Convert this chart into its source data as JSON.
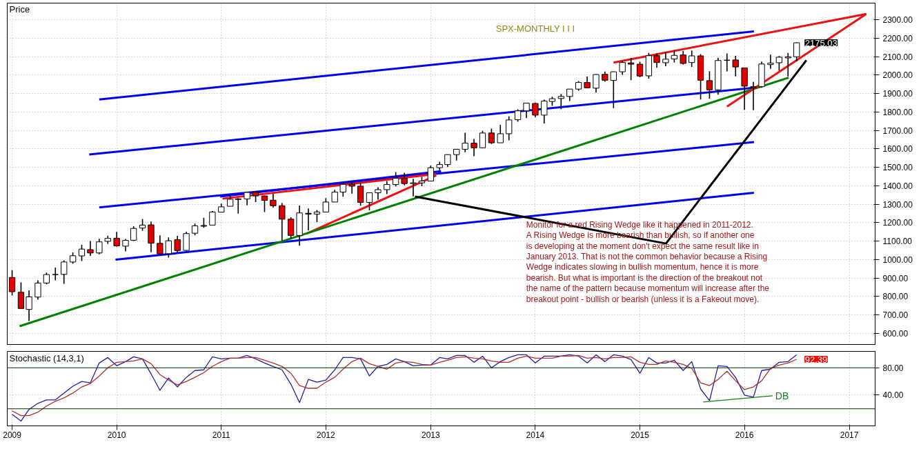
{
  "chart_data": [
    {
      "type": "candlestick",
      "title": "SPX-MONTHLY  I I I",
      "ylabel": "Price",
      "xlim": [
        "2008-12-15",
        "2017-04-01"
      ],
      "ylim": [
        540,
        2390
      ],
      "xticks": [
        "2009",
        "2010",
        "2011",
        "2012",
        "2013",
        "2014",
        "2015",
        "2016",
        "2017"
      ],
      "yticks": [
        {
          "value": 600,
          "label": "600.00"
        },
        {
          "value": 700,
          "label": "700.00"
        },
        {
          "value": 800,
          "label": "800.00"
        },
        {
          "value": 900,
          "label": "900.00"
        },
        {
          "value": 1000,
          "label": "1000.00"
        },
        {
          "value": 1100,
          "label": "1100.00"
        },
        {
          "value": 1200,
          "label": "1200.00"
        },
        {
          "value": 1300,
          "label": "1300.00"
        },
        {
          "value": 1400,
          "label": "1400.00"
        },
        {
          "value": 1500,
          "label": "1500.00"
        },
        {
          "value": 1600,
          "label": "1600.00"
        },
        {
          "value": 1700,
          "label": "1700.00"
        },
        {
          "value": 1800,
          "label": "1800.00"
        },
        {
          "value": 1900,
          "label": "1900.00"
        },
        {
          "value": 2000,
          "label": "2000.00"
        },
        {
          "value": 2100,
          "label": "2100.00"
        },
        {
          "value": 2200,
          "label": "2200.00"
        },
        {
          "value": 2300,
          "label": "2300.00"
        }
      ],
      "tick_labels": "y",
      "grid": true,
      "x": [
        "2009-01",
        "2009-02",
        "2009-03",
        "2009-04",
        "2009-05",
        "2009-06",
        "2009-07",
        "2009-08",
        "2009-09",
        "2009-10",
        "2009-11",
        "2009-12",
        "2010-01",
        "2010-02",
        "2010-03",
        "2010-04",
        "2010-05",
        "2010-06",
        "2010-07",
        "2010-08",
        "2010-09",
        "2010-10",
        "2010-11",
        "2010-12",
        "2011-01",
        "2011-02",
        "2011-03",
        "2011-04",
        "2011-05",
        "2011-06",
        "2011-07",
        "2011-08",
        "2011-09",
        "2011-10",
        "2011-11",
        "2011-12",
        "2012-01",
        "2012-02",
        "2012-03",
        "2012-04",
        "2012-05",
        "2012-06",
        "2012-07",
        "2012-08",
        "2012-09",
        "2012-10",
        "2012-11",
        "2012-12",
        "2013-01",
        "2013-02",
        "2013-03",
        "2013-04",
        "2013-05",
        "2013-06",
        "2013-07",
        "2013-08",
        "2013-09",
        "2013-10",
        "2013-11",
        "2013-12",
        "2014-01",
        "2014-02",
        "2014-03",
        "2014-04",
        "2014-05",
        "2014-06",
        "2014-07",
        "2014-08",
        "2014-09",
        "2014-10",
        "2014-11",
        "2014-12",
        "2015-01",
        "2015-02",
        "2015-03",
        "2015-04",
        "2015-05",
        "2015-06",
        "2015-07",
        "2015-08",
        "2015-09",
        "2015-10",
        "2015-11",
        "2015-12",
        "2016-01",
        "2016-02",
        "2016-03",
        "2016-04",
        "2016-05",
        "2016-06",
        "2016-07"
      ],
      "ohlc": [
        [
          903,
          943,
          805,
          826
        ],
        [
          823,
          876,
          735,
          735
        ],
        [
          730,
          833,
          667,
          798
        ],
        [
          797,
          888,
          783,
          873
        ],
        [
          873,
          930,
          866,
          919
        ],
        [
          919,
          957,
          888,
          919
        ],
        [
          920,
          996,
          869,
          987
        ],
        [
          987,
          1039,
          978,
          1021
        ],
        [
          1020,
          1080,
          992,
          1057
        ],
        [
          1054,
          1101,
          1020,
          1036
        ],
        [
          1036,
          1113,
          1029,
          1096
        ],
        [
          1099,
          1130,
          1085,
          1115
        ],
        [
          1116,
          1150,
          1071,
          1074
        ],
        [
          1073,
          1112,
          1045,
          1104
        ],
        [
          1105,
          1181,
          1101,
          1169
        ],
        [
          1171,
          1220,
          1157,
          1187
        ],
        [
          1188,
          1206,
          1040,
          1089
        ],
        [
          1088,
          1131,
          1028,
          1031
        ],
        [
          1032,
          1120,
          1011,
          1102
        ],
        [
          1108,
          1129,
          1040,
          1049
        ],
        [
          1050,
          1151,
          1047,
          1141
        ],
        [
          1143,
          1196,
          1131,
          1183
        ],
        [
          1185,
          1227,
          1173,
          1181
        ],
        [
          1187,
          1263,
          1187,
          1258
        ],
        [
          1257,
          1303,
          1257,
          1286
        ],
        [
          1289,
          1345,
          1289,
          1327
        ],
        [
          1329,
          1333,
          1249,
          1326
        ],
        [
          1329,
          1364,
          1294,
          1364
        ],
        [
          1365,
          1371,
          1312,
          1345
        ],
        [
          1345,
          1346,
          1258,
          1321
        ],
        [
          1322,
          1357,
          1282,
          1292
        ],
        [
          1292,
          1307,
          1102,
          1219
        ],
        [
          1219,
          1230,
          1114,
          1131
        ],
        [
          1131,
          1293,
          1075,
          1253
        ],
        [
          1251,
          1277,
          1158,
          1247
        ],
        [
          1247,
          1269,
          1203,
          1258
        ],
        [
          1258,
          1333,
          1258,
          1312
        ],
        [
          1312,
          1378,
          1312,
          1366
        ],
        [
          1366,
          1420,
          1341,
          1408
        ],
        [
          1409,
          1422,
          1358,
          1398
        ],
        [
          1398,
          1415,
          1292,
          1310
        ],
        [
          1310,
          1363,
          1267,
          1362
        ],
        [
          1362,
          1392,
          1325,
          1379
        ],
        [
          1379,
          1426,
          1355,
          1407
        ],
        [
          1407,
          1474,
          1397,
          1441
        ],
        [
          1441,
          1471,
          1403,
          1412
        ],
        [
          1412,
          1438,
          1343,
          1416
        ],
        [
          1416,
          1448,
          1398,
          1426
        ],
        [
          1426,
          1510,
          1426,
          1498
        ],
        [
          1498,
          1530,
          1485,
          1515
        ],
        [
          1515,
          1570,
          1501,
          1569
        ],
        [
          1569,
          1598,
          1537,
          1598
        ],
        [
          1598,
          1687,
          1582,
          1631
        ],
        [
          1631,
          1654,
          1560,
          1606
        ],
        [
          1606,
          1698,
          1605,
          1686
        ],
        [
          1686,
          1710,
          1627,
          1633
        ],
        [
          1633,
          1730,
          1633,
          1682
        ],
        [
          1682,
          1776,
          1646,
          1757
        ],
        [
          1758,
          1814,
          1747,
          1806
        ],
        [
          1806,
          1849,
          1767,
          1848
        ],
        [
          1846,
          1851,
          1771,
          1783
        ],
        [
          1783,
          1867,
          1738,
          1859
        ],
        [
          1857,
          1883,
          1834,
          1872
        ],
        [
          1873,
          1898,
          1815,
          1884
        ],
        [
          1884,
          1924,
          1859,
          1924
        ],
        [
          1924,
          1968,
          1915,
          1960
        ],
        [
          1960,
          1992,
          1930,
          1931
        ],
        [
          1929,
          2005,
          1905,
          2003
        ],
        [
          2004,
          2019,
          1964,
          1972
        ],
        [
          1971,
          2019,
          1821,
          2018
        ],
        [
          2018,
          2076,
          2001,
          2068
        ],
        [
          2066,
          2093,
          1972,
          2059
        ],
        [
          2059,
          2072,
          1988,
          1995
        ],
        [
          1996,
          2120,
          1981,
          2105
        ],
        [
          2105,
          2117,
          2040,
          2068
        ],
        [
          2067,
          2126,
          2048,
          2086
        ],
        [
          2087,
          2135,
          2068,
          2107
        ],
        [
          2109,
          2130,
          2057,
          2063
        ],
        [
          2068,
          2133,
          2044,
          2104
        ],
        [
          2104,
          2113,
          1868,
          1972
        ],
        [
          1970,
          2021,
          1872,
          1920
        ],
        [
          1920,
          2094,
          1894,
          2079
        ],
        [
          2081,
          2117,
          2020,
          2080
        ],
        [
          2082,
          2104,
          1993,
          2044
        ],
        [
          2039,
          2039,
          1812,
          1940
        ],
        [
          1937,
          1963,
          1810,
          1932
        ],
        [
          1937,
          2073,
          1931,
          2060
        ],
        [
          2057,
          2111,
          2034,
          2065
        ],
        [
          2067,
          2103,
          2025,
          2097
        ],
        [
          2093,
          2120,
          1992,
          2099
        ],
        [
          2099,
          2177,
          2074,
          2175.03
        ]
      ],
      "colors": [
        "#e00000",
        "#e00000",
        "#ffffff",
        "#ffffff",
        "#ffffff",
        "#000000",
        "#ffffff",
        "#ffffff",
        "#ffffff",
        "#e00000",
        "#ffffff",
        "#ffffff",
        "#e00000",
        "#ffffff",
        "#ffffff",
        "#ffffff",
        "#e00000",
        "#e00000",
        "#ffffff",
        "#e00000",
        "#ffffff",
        "#ffffff",
        "#e00000",
        "#ffffff",
        "#ffffff",
        "#ffffff",
        "#e00000",
        "#ffffff",
        "#e00000",
        "#e00000",
        "#e00000",
        "#e00000",
        "#e00000",
        "#ffffff",
        "#e00000",
        "#ffffff",
        "#ffffff",
        "#ffffff",
        "#ffffff",
        "#e00000",
        "#e00000",
        "#ffffff",
        "#ffffff",
        "#ffffff",
        "#ffffff",
        "#e00000",
        "#ffffff",
        "#ffffff",
        "#ffffff",
        "#ffffff",
        "#ffffff",
        "#ffffff",
        "#ffffff",
        "#e00000",
        "#ffffff",
        "#e00000",
        "#ffffff",
        "#ffffff",
        "#ffffff",
        "#ffffff",
        "#e00000",
        "#ffffff",
        "#ffffff",
        "#ffffff",
        "#ffffff",
        "#ffffff",
        "#e00000",
        "#ffffff",
        "#e00000",
        "#ffffff",
        "#ffffff",
        "#e00000",
        "#e00000",
        "#ffffff",
        "#e00000",
        "#ffffff",
        "#ffffff",
        "#e00000",
        "#ffffff",
        "#e00000",
        "#e00000",
        "#ffffff",
        "#e00000",
        "#e00000",
        "#e00000",
        "#e00000",
        "#ffffff",
        "#ffffff",
        "#ffffff",
        "#ffffff",
        "#ffffff"
      ],
      "series": [
        {
          "type": "line",
          "color": "#0000ee",
          "x": [
            "2009-11-01",
            "2016-02-03"
          ],
          "values": [
            1868,
            2237
          ]
        },
        {
          "type": "line",
          "color": "#0000ee",
          "x": [
            "2009-09-27",
            "2016-02-03"
          ],
          "values": [
            1570,
            1931
          ]
        },
        {
          "type": "line",
          "color": "#0000ee",
          "x": [
            "2009-11-01",
            "2016-02-03"
          ],
          "values": [
            1283,
            1637
          ]
        },
        {
          "type": "line",
          "color": "#0000ee",
          "x": [
            "2009-12-28",
            "2016-02-03"
          ],
          "values": [
            1000,
            1362
          ]
        },
        {
          "type": "line",
          "color": "#0000ee",
          "x": [
            "2010-12-28",
            "2013-02-06"
          ],
          "values": [
            1342,
            1479
          ]
        },
        {
          "type": "line",
          "color": "#ee1111",
          "x": [
            "2011-01-05",
            "2013-01-20"
          ],
          "values": [
            1330,
            1464
          ]
        },
        {
          "type": "line",
          "color": "#ee1111",
          "x": [
            "2011-10-25",
            "2013-01-20"
          ],
          "values": [
            1140,
            1456
          ]
        },
        {
          "type": "line",
          "color": "#008000",
          "x": [
            "2009-01-27",
            "2016-06-03"
          ],
          "values": [
            639,
            1986
          ]
        },
        {
          "type": "line",
          "color": "#ee1111",
          "x": [
            "2014-10-01",
            "2017-03-01"
          ],
          "values": [
            2068,
            2331
          ]
        },
        {
          "type": "line",
          "color": "#ee1111",
          "x": [
            "2015-11-01",
            "2017-03-01"
          ],
          "values": [
            1829,
            2331
          ]
        },
        {
          "type": "line",
          "color": "#000000",
          "x": [
            "2012-11-07",
            "2015-04-02",
            "2016-08-04"
          ],
          "values": [
            1342,
            1087,
            2080
          ]
        }
      ],
      "annotations": [
        {
          "text": "2175.03",
          "x": "2016-07",
          "y": 2175.03
        },
        "Monitor for a red Rising Wedge like it happened in 2011-2012.\nA Rising Wedge is more bearish than bullish, so if another one\nis developing at the moment don't expect the same result like in\nJanuary 2013. That is not the common behavior because a Rising\nWedge indicates slowing in bullish momentum, hence it is more\nbearish. But what is important is the direction of the breakout not\nthe name of the pattern because momentum will increase after the\nbreakout point - bullish or bearish (unless it is a Fakeout move)."
      ]
    },
    {
      "type": "line",
      "title": "Stochastic (14,3,1)",
      "xlim": [
        "2008-12-15",
        "2017-04-01"
      ],
      "ylim": [
        -5,
        104
      ],
      "xticks": [
        "2009",
        "2010",
        "2011",
        "2012",
        "2013",
        "2014",
        "2015",
        "2016",
        "2017"
      ],
      "yticks": [
        {
          "value": 40,
          "label": "40.00"
        },
        {
          "value": 80,
          "label": "80.00"
        }
      ],
      "grid": true,
      "ref_lines": [
        {
          "axis": "y",
          "value": 80,
          "color": "#003000"
        },
        {
          "axis": "y",
          "value": 20,
          "color": "#003000"
        }
      ],
      "series": [
        {
          "color": "#1f1fa0",
          "x": [
            "2009-01",
            "2009-02",
            "2009-03",
            "2009-04",
            "2009-05",
            "2009-06",
            "2009-07",
            "2009-08",
            "2009-09",
            "2009-10",
            "2009-11",
            "2009-12",
            "2010-01",
            "2010-02",
            "2010-03",
            "2010-04",
            "2010-05",
            "2010-06",
            "2010-07",
            "2010-08",
            "2010-09",
            "2010-10",
            "2010-11",
            "2010-12",
            "2011-01",
            "2011-02",
            "2011-03",
            "2011-04",
            "2011-05",
            "2011-06",
            "2011-07",
            "2011-08",
            "2011-09",
            "2011-10",
            "2011-11",
            "2011-12",
            "2012-01",
            "2012-02",
            "2012-03",
            "2012-04",
            "2012-05",
            "2012-06",
            "2012-07",
            "2012-08",
            "2012-09",
            "2012-10",
            "2012-11",
            "2012-12",
            "2013-01",
            "2013-02",
            "2013-03",
            "2013-04",
            "2013-05",
            "2013-06",
            "2013-07",
            "2013-08",
            "2013-09",
            "2013-10",
            "2013-11",
            "2013-12",
            "2014-01",
            "2014-02",
            "2014-03",
            "2014-04",
            "2014-05",
            "2014-06",
            "2014-07",
            "2014-08",
            "2014-09",
            "2014-10",
            "2014-11",
            "2014-12",
            "2015-01",
            "2015-02",
            "2015-03",
            "2015-04",
            "2015-05",
            "2015-06",
            "2015-07",
            "2015-08",
            "2015-09",
            "2015-10",
            "2015-11",
            "2015-12",
            "2016-01",
            "2016-02",
            "2016-03",
            "2016-04",
            "2016-05",
            "2016-06",
            "2016-07"
          ],
          "values": [
            12,
            2,
            19,
            28,
            33,
            33,
            43,
            53,
            60,
            58,
            87,
            95,
            83,
            89,
            96,
            93,
            71,
            47,
            65,
            52,
            66,
            76,
            77,
            96,
            93,
            94,
            94,
            98,
            93,
            87,
            82,
            77,
            56,
            29,
            63,
            59,
            62,
            77,
            95,
            95,
            93,
            68,
            82,
            85,
            93,
            89,
            83,
            84,
            84,
            95,
            93,
            98,
            98,
            88,
            97,
            80,
            89,
            95,
            99,
            99,
            87,
            97,
            97,
            97,
            99,
            97,
            87,
            99,
            89,
            99,
            97,
            92,
            72,
            95,
            87,
            87,
            91,
            76,
            89,
            49,
            32,
            83,
            82,
            66,
            40,
            37,
            76,
            78,
            88,
            89,
            99
          ]
        },
        {
          "color": "#b03030",
          "x": [
            "2009-01",
            "2009-02",
            "2009-03",
            "2009-04",
            "2009-05",
            "2009-06",
            "2009-07",
            "2009-08",
            "2009-09",
            "2009-10",
            "2009-11",
            "2009-12",
            "2010-01",
            "2010-02",
            "2010-03",
            "2010-04",
            "2010-05",
            "2010-06",
            "2010-07",
            "2010-08",
            "2010-09",
            "2010-10",
            "2010-11",
            "2010-12",
            "2011-01",
            "2011-02",
            "2011-03",
            "2011-04",
            "2011-05",
            "2011-06",
            "2011-07",
            "2011-08",
            "2011-09",
            "2011-10",
            "2011-11",
            "2011-12",
            "2012-01",
            "2012-02",
            "2012-03",
            "2012-04",
            "2012-05",
            "2012-06",
            "2012-07",
            "2012-08",
            "2012-09",
            "2012-10",
            "2012-11",
            "2012-12",
            "2013-01",
            "2013-02",
            "2013-03",
            "2013-04",
            "2013-05",
            "2013-06",
            "2013-07",
            "2013-08",
            "2013-09",
            "2013-10",
            "2013-11",
            "2013-12",
            "2014-01",
            "2014-02",
            "2014-03",
            "2014-04",
            "2014-05",
            "2014-06",
            "2014-07",
            "2014-08",
            "2014-09",
            "2014-10",
            "2014-11",
            "2014-12",
            "2015-01",
            "2015-02",
            "2015-03",
            "2015-04",
            "2015-05",
            "2015-06",
            "2015-07",
            "2015-08",
            "2015-09",
            "2015-10",
            "2015-11",
            "2015-12",
            "2016-01",
            "2016-02",
            "2016-03",
            "2016-04",
            "2016-05",
            "2016-06",
            "2016-07"
          ],
          "values": [
            17,
            10,
            10,
            15,
            24,
            31,
            36,
            43,
            52,
            57,
            68,
            80,
            88,
            89,
            90,
            93,
            86,
            70,
            62,
            55,
            60,
            66,
            73,
            82,
            89,
            94,
            94,
            95,
            95,
            91,
            87,
            82,
            72,
            54,
            50,
            50,
            59,
            66,
            78,
            89,
            94,
            86,
            82,
            78,
            87,
            89,
            88,
            85,
            84,
            88,
            91,
            95,
            96,
            94,
            93,
            90,
            88,
            88,
            94,
            97,
            94,
            94,
            94,
            97,
            97,
            98,
            94,
            95,
            93,
            95,
            95,
            96,
            88,
            85,
            85,
            90,
            88,
            85,
            79,
            58,
            54,
            63,
            75,
            61,
            48,
            52,
            61,
            79,
            84,
            87,
            92.39
          ]
        },
        {
          "color": "#108010",
          "x": [
            "2015-08-10",
            "2016-04-08"
          ],
          "values": [
            30,
            39
          ]
        }
      ],
      "annotations": [
        {
          "text": "92.39",
          "x": "2016-07",
          "y": 92.39
        },
        {
          "text": "DB",
          "x": "2016-04-08",
          "y": 39
        }
      ]
    }
  ]
}
